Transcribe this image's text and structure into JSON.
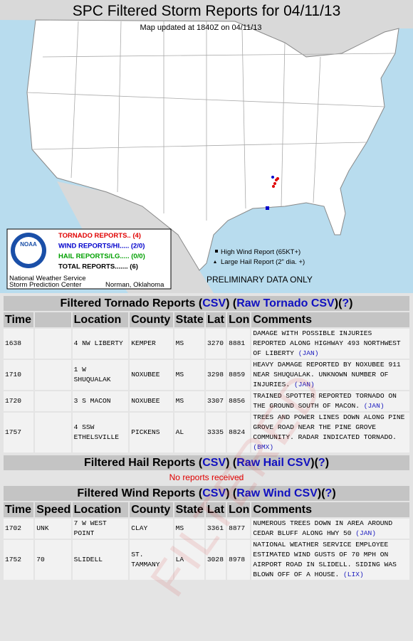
{
  "header": {
    "title": "SPC Filtered Storm Reports for 04/11/13",
    "subtitle": "Map updated at 1840Z on 04/11/13"
  },
  "legend": {
    "logo": "NOAA",
    "items": [
      {
        "text": "TORNADO REPORTS.. (4)",
        "color": "#e00000"
      },
      {
        "text": "WIND REPORTS/HI..... (2/0)",
        "color": "#0000cc"
      },
      {
        "text": "HAIL REPORTS/LG..... (0/0)",
        "color": "#00a000"
      },
      {
        "text": "TOTAL REPORTS....... (6)",
        "color": "#000000"
      }
    ],
    "org": [
      "National Weather Service",
      "Storm Prediction Center"
    ],
    "location": "Norman, Oklahoma"
  },
  "map_notes": [
    "High Wind Report (65KT+)",
    "Large Hail Report (2\" dia. +)"
  ],
  "preliminary": "PRELIMINARY DATA ONLY",
  "watermark": "FILTERED",
  "tornado": {
    "heading": [
      "Filtered Tornado Reports (",
      "CSV",
      ") (",
      "Raw Tornado CSV",
      ")(",
      "?",
      ")"
    ],
    "columns": [
      "Time",
      "Location",
      "County",
      "State",
      "Lat",
      "Lon",
      "Comments"
    ],
    "rows": [
      {
        "time": "1638",
        "location": "4 NW LIBERTY",
        "county": "KEMPER",
        "state": "MS",
        "lat": "3270",
        "lon": "8881",
        "comments": "DAMAGE WITH POSSIBLE INJURIES REPORTED ALONG HIGHWAY 493 NORTHWEST OF LIBERTY",
        "office": "(JAN)"
      },
      {
        "time": "1710",
        "location": "1 W SHUQUALAK",
        "county": "NOXUBEE",
        "state": "MS",
        "lat": "3298",
        "lon": "8859",
        "comments": "HEAVY DAMAGE REPORTED BY NOXUBEE 911 NEAR SHUQUALAK. UNKNOWN NUMBER OF INJURIES.",
        "office": "(JAN)"
      },
      {
        "time": "1720",
        "location": "3 S MACON",
        "county": "NOXUBEE",
        "state": "MS",
        "lat": "3307",
        "lon": "8856",
        "comments": "TRAINED SPOTTER REPORTED TORNADO ON THE GROUND SOUTH OF MACON.",
        "office": "(JAN)"
      },
      {
        "time": "1757",
        "location": "4 SSW ETHELSVILLE",
        "county": "PICKENS",
        "state": "AL",
        "lat": "3335",
        "lon": "8824",
        "comments": "TREES AND POWER LINES DOWN ALONG PINE GROVE ROAD NEAR THE PINE GROVE COMMUNITY. RADAR INDICATED TORNADO.",
        "office": "(BMX)"
      }
    ]
  },
  "hail": {
    "heading": [
      "Filtered Hail Reports (",
      "CSV",
      ") (",
      "Raw Hail CSV",
      ")(",
      "?",
      ")"
    ],
    "message": "No reports received"
  },
  "wind": {
    "heading": [
      "Filtered Wind Reports (",
      "CSV",
      ") (",
      "Raw Wind CSV",
      ")(",
      "?",
      ")"
    ],
    "columns": [
      "Time",
      "Speed",
      "Location",
      "County",
      "State",
      "Lat",
      "Lon",
      "Comments"
    ],
    "rows": [
      {
        "time": "1702",
        "speed": "UNK",
        "location": "7 W WEST POINT",
        "county": "CLAY",
        "state": "MS",
        "lat": "3361",
        "lon": "8877",
        "comments": "NUMEROUS TREES DOWN IN AREA AROUND CEDAR BLUFF ALONG HWY 50",
        "office": "(JAN)"
      },
      {
        "time": "1752",
        "speed": "70",
        "location": "SLIDELL",
        "county": "ST. TAMMANY",
        "state": "LA",
        "lat": "3028",
        "lon": "8978",
        "comments": "NATIONAL WEATHER SERVICE EMPLOYEE ESTIMATED WIND GUSTS OF 70 MPH ON AIRPORT ROAD IN SLIDELL. SIDING WAS BLOWN OFF OF A HOUSE.",
        "office": "(LIX)"
      }
    ]
  }
}
